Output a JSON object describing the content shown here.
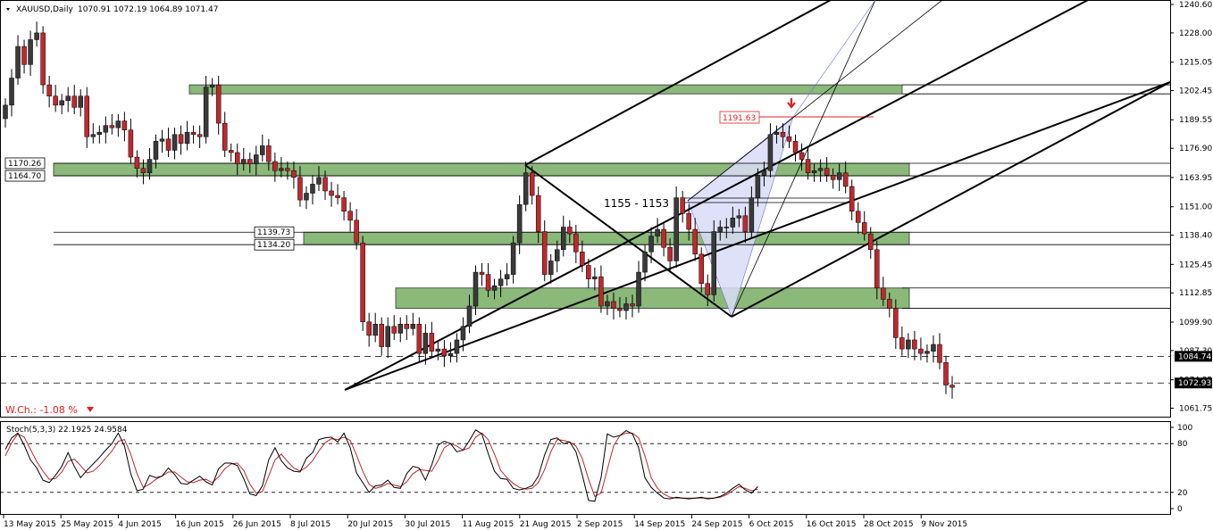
{
  "header": {
    "symbol": "XAUUSD,Daily",
    "ohlc": "1070.91 1072.19 1064.89 1071.47"
  },
  "weekly_change": "W.Ch.: -1.08 %",
  "stoch": {
    "label": "Stoch(5,3,3) 22.1925 24.9584",
    "scale": [
      "100",
      "80",
      "20",
      "0"
    ],
    "levels": [
      80,
      20
    ]
  },
  "colors": {
    "bull": "#3a3a3a",
    "bear": "#c0282e",
    "zone": "#8ab97a",
    "channel": "#000000",
    "pitchfork_fill": "#d9dcf7",
    "annotation": "#e02020"
  },
  "chart_data": {
    "type": "candlestick",
    "title": "XAUUSD,Daily",
    "ylim": [
      1058,
      1241
    ],
    "y_ticks": [
      "1240.60",
      "1228.00",
      "1215.05",
      "1202.45",
      "1189.55",
      "1176.90",
      "1163.95",
      "1151.00",
      "1138.40",
      "1125.45",
      "1112.85",
      "1099.90",
      "1087.30",
      "1074.35",
      "1061.75"
    ],
    "x_ticks": [
      "13 May 2015",
      "25 May 2015",
      "4 Jun 2015",
      "16 Jun 2015",
      "26 Jun 2015",
      "8 Jul 2015",
      "20 Jul 2015",
      "30 Jul 2015",
      "11 Aug 2015",
      "21 Aug 2015",
      "2 Sep 2015",
      "14 Sep 2015",
      "24 Sep 2015",
      "6 Oct 2015",
      "16 Oct 2015",
      "28 Oct 2015",
      "9 Nov 2015"
    ],
    "price_tags": {
      "current": "1072.93",
      "level": "1084.74"
    },
    "levels": [
      {
        "label": "1170.26",
        "value": 1170.26
      },
      {
        "label": "1164.70",
        "value": 1164.7
      },
      {
        "label": "1139.73",
        "value": 1139.73
      },
      {
        "label": "1134.20",
        "value": 1134.2
      }
    ],
    "zones": [
      [
        1201,
        1205
      ],
      [
        1164.7,
        1170.26
      ],
      [
        1134.2,
        1139.73
      ],
      [
        1106,
        1115
      ]
    ],
    "annotations": {
      "peak": "1191.63",
      "range": "1155 - 1153"
    },
    "closes": [
      1196,
      1208,
      1222,
      1214,
      1225,
      1228,
      1205,
      1200,
      1196,
      1198,
      1200,
      1195,
      1200,
      1182,
      1183,
      1184,
      1187,
      1186,
      1189,
      1185,
      1173,
      1168,
      1166,
      1172,
      1180,
      1181,
      1176,
      1183,
      1179,
      1184,
      1183,
      1182,
      1204,
      1205,
      1188,
      1176,
      1175,
      1170,
      1172,
      1170,
      1174,
      1178,
      1171,
      1167,
      1168,
      1167,
      1164,
      1154,
      1157,
      1161,
      1164,
      1158,
      1156,
      1155,
      1149,
      1145,
      1135,
      1100,
      1094,
      1099,
      1089,
      1098,
      1095,
      1099,
      1097,
      1099,
      1086,
      1095,
      1087,
      1088,
      1085,
      1086,
      1092,
      1098,
      1107,
      1122,
      1121,
      1114,
      1116,
      1119,
      1121,
      1135,
      1152,
      1166,
      1156,
      1140,
      1121,
      1127,
      1132,
      1142,
      1139,
      1131,
      1125,
      1119,
      1120,
      1107,
      1109,
      1106,
      1105,
      1108,
      1107,
      1122,
      1131,
      1138,
      1141,
      1133,
      1127,
      1155,
      1148,
      1141,
      1130,
      1117,
      1112,
      1140,
      1142,
      1142,
      1146,
      1147,
      1140,
      1155,
      1165,
      1167,
      1183,
      1184,
      1182,
      1180,
      1175,
      1172,
      1166,
      1167,
      1168,
      1165,
      1163,
      1166,
      1160,
      1149,
      1144,
      1139,
      1132,
      1115,
      1110,
      1106,
      1093,
      1088,
      1092,
      1088,
      1086,
      1087,
      1090,
      1082,
      1072,
      1071
    ],
    "stoch_k": [
      73,
      87,
      93,
      78,
      60,
      50,
      35,
      32,
      41,
      52,
      69,
      52,
      38,
      47,
      55,
      63,
      72,
      80,
      93,
      77,
      43,
      22,
      24,
      41,
      38,
      40,
      50,
      42,
      31,
      30,
      35,
      40,
      33,
      29,
      49,
      56,
      56,
      53,
      37,
      18,
      16,
      28,
      60,
      75,
      59,
      50,
      46,
      45,
      62,
      69,
      85,
      87,
      88,
      82,
      93,
      75,
      44,
      32,
      20,
      28,
      29,
      35,
      26,
      25,
      43,
      52,
      50,
      35,
      54,
      78,
      83,
      80,
      70,
      72,
      84,
      97,
      92,
      68,
      46,
      37,
      36,
      25,
      23,
      25,
      28,
      40,
      66,
      85,
      87,
      80,
      82,
      70,
      42,
      10,
      9,
      38,
      92,
      88,
      90,
      96,
      92,
      75,
      38,
      26,
      19,
      13,
      12,
      14,
      13,
      12,
      13,
      14,
      12,
      13,
      15,
      19,
      25,
      30,
      23,
      19,
      27
    ],
    "stoch_d": [
      65,
      81,
      92,
      88,
      73,
      58,
      46,
      36,
      37,
      45,
      58,
      61,
      53,
      44,
      46,
      53,
      62,
      71,
      83,
      85,
      67,
      43,
      26,
      30,
      36,
      40,
      45,
      45,
      39,
      33,
      32,
      35,
      36,
      32,
      39,
      49,
      55,
      56,
      47,
      30,
      19,
      21,
      40,
      60,
      67,
      58,
      50,
      46,
      51,
      59,
      71,
      81,
      86,
      85,
      88,
      84,
      66,
      46,
      30,
      25,
      27,
      31,
      29,
      27,
      33,
      43,
      48,
      47,
      46,
      59,
      75,
      80,
      77,
      72,
      75,
      88,
      93,
      85,
      67,
      47,
      38,
      31,
      26,
      24,
      25,
      32,
      48,
      70,
      85,
      84,
      82,
      77,
      62,
      36,
      15,
      19,
      48,
      77,
      90,
      93,
      93,
      87,
      65,
      38,
      25,
      18,
      14,
      13,
      13,
      13,
      13,
      13,
      13,
      13,
      14,
      17,
      22,
      27,
      25,
      22,
      24
    ]
  }
}
